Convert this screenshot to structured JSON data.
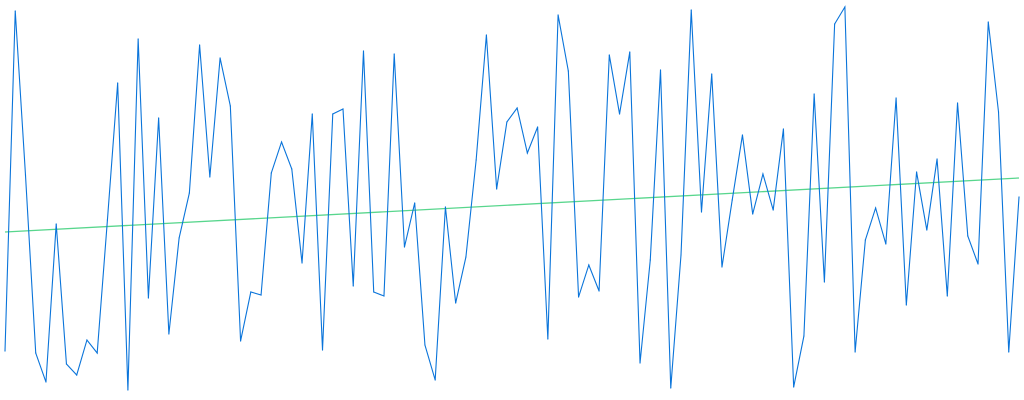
{
  "chart_data": {
    "type": "line",
    "title": "",
    "xlabel": "",
    "ylabel": "",
    "axes_visible": false,
    "grid": false,
    "legend": "none",
    "xlim": [
      0,
      99
    ],
    "ylim": [
      0,
      400
    ],
    "x": [
      0,
      1,
      2,
      3,
      4,
      5,
      6,
      7,
      8,
      9,
      10,
      11,
      12,
      13,
      14,
      15,
      16,
      17,
      18,
      19,
      20,
      21,
      22,
      23,
      24,
      25,
      26,
      27,
      28,
      29,
      30,
      31,
      32,
      33,
      34,
      35,
      36,
      37,
      38,
      39,
      40,
      41,
      42,
      43,
      44,
      45,
      46,
      47,
      48,
      49,
      50,
      51,
      52,
      53,
      54,
      55,
      56,
      57,
      58,
      59,
      60,
      61,
      62,
      63,
      64,
      65,
      66,
      67,
      68,
      69,
      70,
      71,
      72,
      73,
      74,
      75,
      76,
      77,
      78,
      79,
      80,
      81,
      82,
      83,
      84,
      85,
      86,
      87,
      88,
      89,
      90,
      91,
      92,
      93,
      94,
      95,
      96,
      97,
      98,
      99
    ],
    "series": [
      {
        "color": "#0a74da",
        "values": [
          49,
          389,
          225,
          47,
          18,
          176,
          36,
          25,
          60,
          47,
          180,
          317,
          10,
          361,
          102,
          282,
          66,
          162,
          207,
          355,
          223,
          342,
          294,
          59,
          108,
          105,
          227,
          258,
          231,
          137,
          286,
          50,
          286,
          291,
          114,
          349,
          108,
          104,
          346,
          153,
          197,
          55,
          20,
          193,
          97,
          143,
          240,
          365,
          211,
          278,
          292,
          247,
          273,
          61,
          385,
          329,
          103,
          135,
          109,
          345,
          286,
          348,
          37,
          140,
          330,
          12,
          145,
          390,
          188,
          326,
          133,
          200,
          265,
          186,
          226,
          190,
          271,
          13,
          64,
          306,
          118,
          376,
          393,
          48,
          160,
          192,
          156,
          302,
          95,
          228,
          170,
          241,
          104,
          297,
          164,
          136,
          378,
          288,
          48,
          203
        ]
      }
    ],
    "trendline": {
      "color": "#2ecc71",
      "start_value": 168,
      "end_value": 222
    }
  }
}
